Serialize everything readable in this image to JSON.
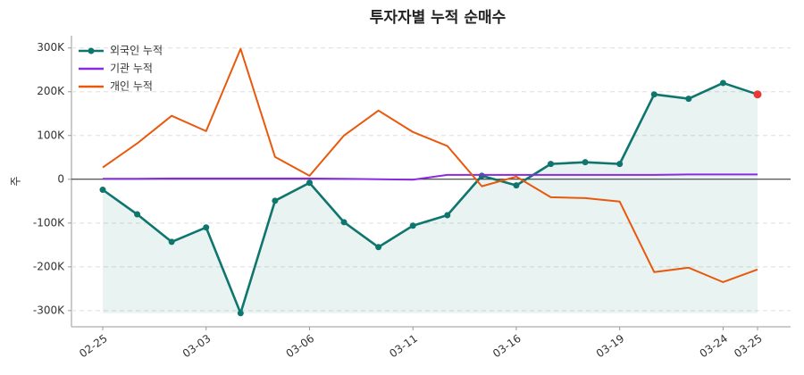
{
  "chart_data": {
    "type": "line",
    "title": "투자자별 누적 순매수",
    "y_label": "주",
    "categories": [
      "02-25",
      null,
      null,
      "03-03",
      null,
      null,
      "03-06",
      null,
      null,
      "03-11",
      null,
      null,
      "03-16",
      null,
      null,
      "03-19",
      null,
      null,
      "03-24",
      "03-25"
    ],
    "series": [
      {
        "name": "외국인 누적",
        "color": "#0f766e",
        "markers": true,
        "fill": true,
        "values": [
          -24000,
          -80000,
          -143000,
          -110000,
          -306000,
          -49000,
          -8000,
          -98000,
          -155000,
          -106000,
          -82000,
          8000,
          -14000,
          35000,
          39000,
          35000,
          194000,
          184000,
          220000,
          194000
        ]
      },
      {
        "name": "기관 누적",
        "color": "#8a2be2",
        "markers": false,
        "fill": false,
        "values": [
          1000,
          1000,
          2000,
          2000,
          2000,
          2000,
          2000,
          1000,
          0,
          -1000,
          10000,
          10000,
          10000,
          10000,
          10000,
          10000,
          10000,
          11000,
          11000,
          11000
        ]
      },
      {
        "name": "개인 누적",
        "color": "#e8590c",
        "markers": false,
        "fill": false,
        "values": [
          27000,
          82000,
          145000,
          110000,
          298000,
          51000,
          8000,
          100000,
          157000,
          108000,
          76000,
          -16000,
          6000,
          -41000,
          -43000,
          -51000,
          -212000,
          -202000,
          -235000,
          -206000
        ]
      }
    ],
    "highlight_last_color": "#e53935",
    "ylim": [
      -337000,
      328000
    ],
    "yticks": [
      {
        "value": -300000,
        "label": "-300K"
      },
      {
        "value": -200000,
        "label": "-200K"
      },
      {
        "value": -100000,
        "label": "-100K"
      },
      0,
      {
        "value": 100000,
        "label": "100K"
      },
      {
        "value": 200000,
        "label": "200K"
      },
      {
        "value": 300000,
        "label": "300K"
      }
    ],
    "grid": true,
    "legend": "upper-left"
  }
}
